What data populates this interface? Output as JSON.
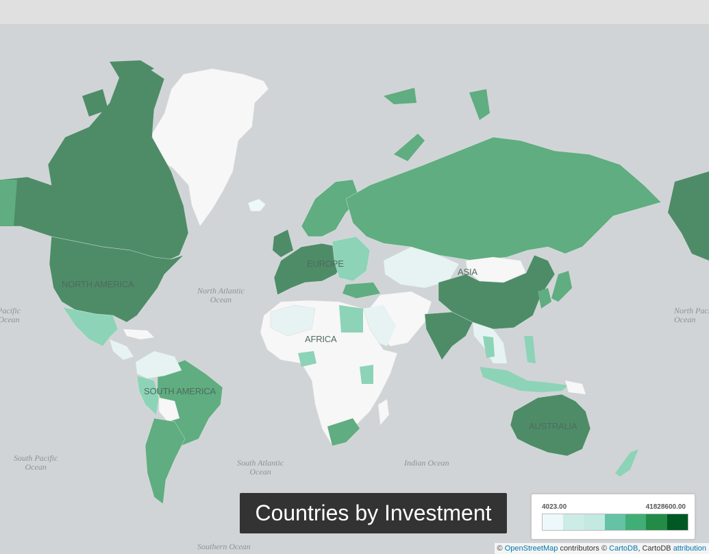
{
  "map": {
    "title": "Countries by Investment",
    "continent_labels": {
      "north_america": "NORTH AMERICA",
      "europe": "EUROPE",
      "asia": "ASIA",
      "africa": "AFRICA",
      "south_america": "SOUTH AMERICA",
      "australia": "AUSTRALIA"
    },
    "ocean_labels": {
      "north_atlantic": "North Atlantic\nOcean",
      "south_atlantic": "South Atlantic\nOcean",
      "north_pacific_left": "Pacific\nOcean",
      "north_pacific_right": "North Pacific\nOcean",
      "south_pacific": "South Pacific\nOcean",
      "indian": "Indian Ocean",
      "southern": "Southern Ocean"
    },
    "legend": {
      "min": "4023.00",
      "max": "41828600.00",
      "colors": [
        "#edf8fb",
        "#ccece6",
        "#c3e9e1",
        "#66c2a4",
        "#41ae76",
        "#238b45",
        "#005824"
      ]
    },
    "attribution": {
      "copyright": "©",
      "osm": "OpenStreetMap",
      "contributors": "contributors ©",
      "cartodb1": "CartoDB",
      "sep": ", CartoDB",
      "attribution": "attribution"
    },
    "colors": {
      "ocean": "#d1d4d6",
      "no_data": "#f7f7f7",
      "dark_green": "#4e8c68",
      "mid_green": "#5fad80",
      "light_teal": "#8dd3b8",
      "pale": "#e6f3f2"
    }
  }
}
